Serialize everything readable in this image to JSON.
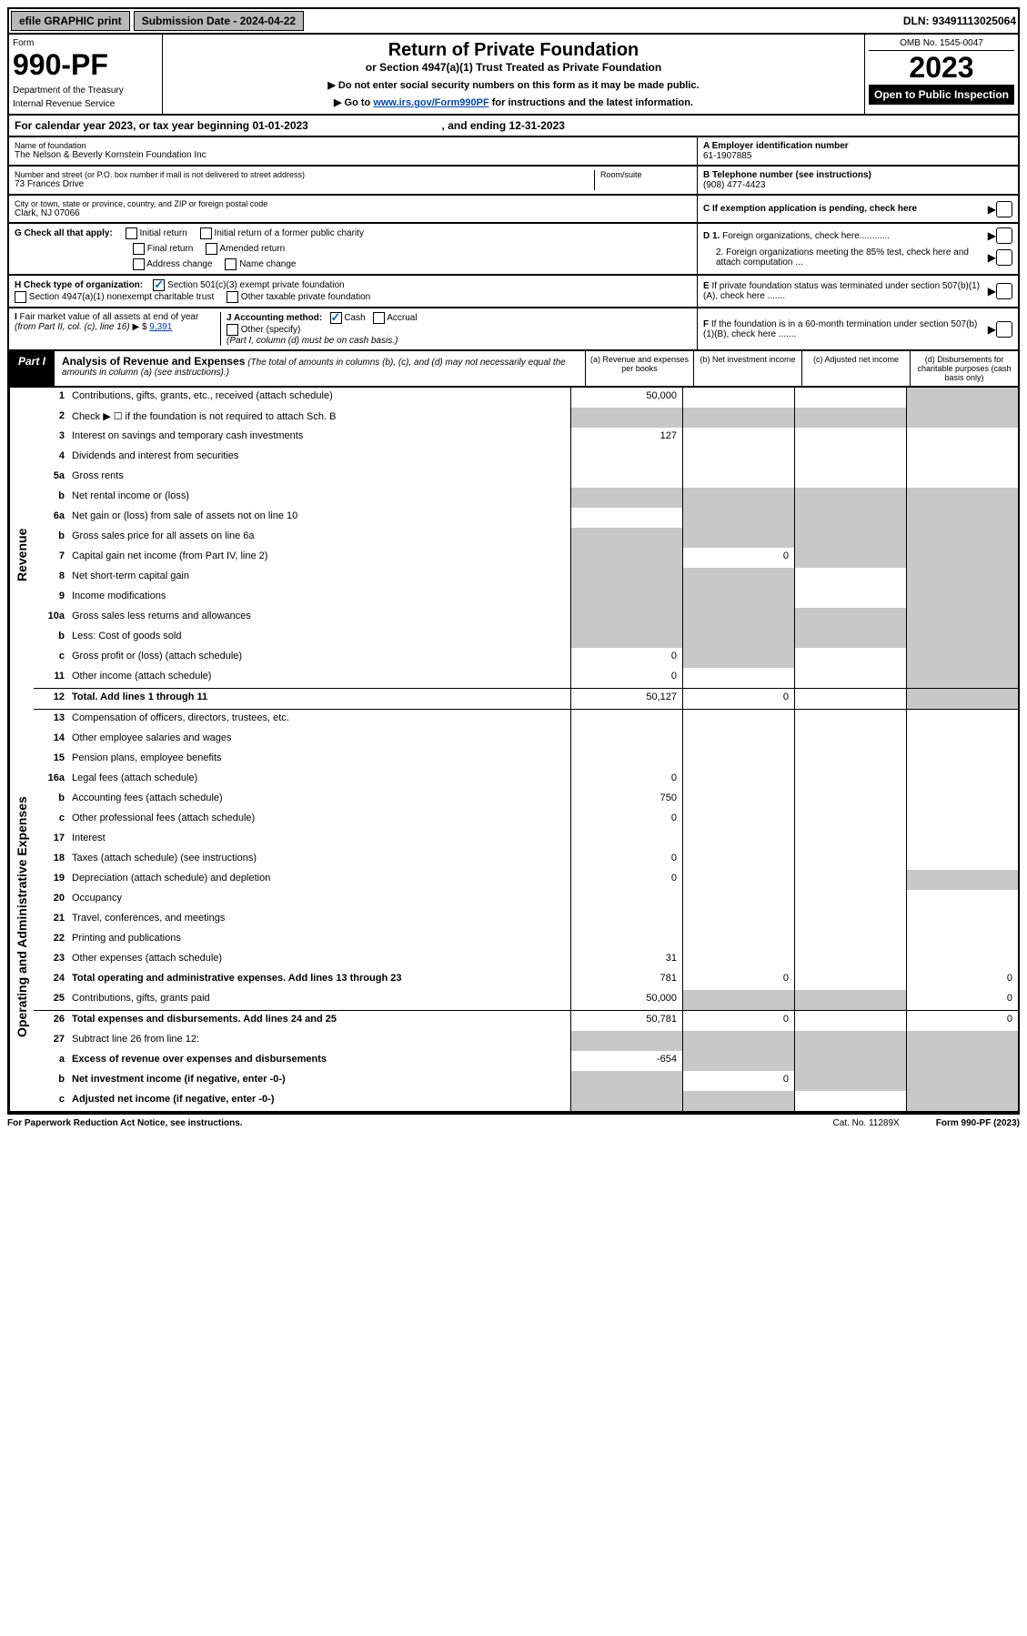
{
  "topbar": {
    "efile": "efile GRAPHIC print",
    "subdate_label": "Submission Date - ",
    "subdate": "2024-04-22",
    "dln_label": "DLN: ",
    "dln": "93491113025064"
  },
  "header": {
    "form_label": "Form",
    "form_num": "990-PF",
    "dept1": "Department of the Treasury",
    "dept2": "Internal Revenue Service",
    "title": "Return of Private Foundation",
    "subtitle": "or Section 4947(a)(1) Trust Treated as Private Foundation",
    "instr1": "▶ Do not enter social security numbers on this form as it may be made public.",
    "instr2_a": "▶ Go to ",
    "instr2_link": "www.irs.gov/Form990PF",
    "instr2_b": " for instructions and the latest information.",
    "omb": "OMB No. 1545-0047",
    "year": "2023",
    "open": "Open to Public Inspection"
  },
  "calyear": {
    "text_a": "For calendar year 2023, or tax year beginning ",
    "begin": "01-01-2023",
    "text_b": " , and ending ",
    "end": "12-31-2023"
  },
  "name": {
    "label": "Name of foundation",
    "value": "The Nelson & Beverly Kornstein Foundation Inc",
    "a_label": "A Employer identification number",
    "ein": "61-1907885"
  },
  "address": {
    "street_label": "Number and street (or P.O. box number if mail is not delivered to street address)",
    "street": "73 Frances Drive",
    "room_label": "Room/suite",
    "b_label": "B Telephone number (see instructions)",
    "phone": "(908) 477-4423",
    "city_label": "City or town, state or province, country, and ZIP or foreign postal code",
    "city": "Clark, NJ 07066",
    "c_label": "C If exemption application is pending, check here"
  },
  "checks": {
    "g_label": "G Check all that apply:",
    "g1": "Initial return",
    "g2": "Initial return of a former public charity",
    "g3": "Final return",
    "g4": "Amended return",
    "g5": "Address change",
    "g6": "Name change",
    "d1": "D 1. Foreign organizations, check here............",
    "d2": "2. Foreign organizations meeting the 85% test, check here and attach computation ...",
    "h_label": "H Check type of organization:",
    "h1": "Section 501(c)(3) exempt private foundation",
    "h2": "Section 4947(a)(1) nonexempt charitable trust",
    "h3": "Other taxable private foundation",
    "e_label": "E If private foundation status was terminated under section 507(b)(1)(A), check here .......",
    "i_label": "I Fair market value of all assets at end of year (from Part II, col. (c), line 16) ▶ $ ",
    "i_val": "9,391",
    "j_label": "J Accounting method:",
    "j1": "Cash",
    "j2": "Accrual",
    "j3": "Other (specify)",
    "j_note": "(Part I, column (d) must be on cash basis.)",
    "f_label": "F If the foundation is in a 60-month termination under section 507(b)(1)(B), check here ......."
  },
  "part1": {
    "label": "Part I",
    "title": "Analysis of Revenue and Expenses",
    "note": "(The total of amounts in columns (b), (c), and (d) may not necessarily equal the amounts in column (a) (see instructions).)",
    "col_a": "(a) Revenue and expenses per books",
    "col_b": "(b) Net investment income",
    "col_c": "(c) Adjusted net income",
    "col_d": "(d) Disbursements for charitable purposes (cash basis only)"
  },
  "side": {
    "revenue": "Revenue",
    "expenses": "Operating and Administrative Expenses"
  },
  "rows": [
    {
      "n": "1",
      "d": "Contributions, gifts, grants, etc., received (attach schedule)",
      "a": "50,000",
      "greyD": true
    },
    {
      "n": "2",
      "d": "Check ▶ ☐ if the foundation is not required to attach Sch. B",
      "allgrey": true
    },
    {
      "n": "3",
      "d": "Interest on savings and temporary cash investments",
      "a": "127"
    },
    {
      "n": "4",
      "d": "Dividends and interest from securities"
    },
    {
      "n": "5a",
      "d": "Gross rents"
    },
    {
      "n": "b",
      "d": "Net rental income or (loss)",
      "allgrey": true
    },
    {
      "n": "6a",
      "d": "Net gain or (loss) from sale of assets not on line 10",
      "greyBCD": true
    },
    {
      "n": "b",
      "d": "Gross sales price for all assets on line 6a",
      "allgrey": true
    },
    {
      "n": "7",
      "d": "Capital gain net income (from Part IV, line 2)",
      "greyA": true,
      "b": "0",
      "greyCD": true
    },
    {
      "n": "8",
      "d": "Net short-term capital gain",
      "greyAB": true,
      "greyD": true
    },
    {
      "n": "9",
      "d": "Income modifications",
      "greyAB": true,
      "greyD": true
    },
    {
      "n": "10a",
      "d": "Gross sales less returns and allowances",
      "allgrey": true
    },
    {
      "n": "b",
      "d": "Less: Cost of goods sold",
      "allgrey": true
    },
    {
      "n": "c",
      "d": "Gross profit or (loss) (attach schedule)",
      "a": "0",
      "greyB": true,
      "greyD": true
    },
    {
      "n": "11",
      "d": "Other income (attach schedule)",
      "a": "0",
      "greyD": true
    },
    {
      "n": "12",
      "d": "Total. Add lines 1 through 11",
      "bold": true,
      "a": "50,127",
      "b": "0",
      "greyD": true,
      "divider": true
    }
  ],
  "exprows": [
    {
      "n": "13",
      "d": "Compensation of officers, directors, trustees, etc."
    },
    {
      "n": "14",
      "d": "Other employee salaries and wages"
    },
    {
      "n": "15",
      "d": "Pension plans, employee benefits"
    },
    {
      "n": "16a",
      "d": "Legal fees (attach schedule)",
      "a": "0"
    },
    {
      "n": "b",
      "d": "Accounting fees (attach schedule)",
      "a": "750"
    },
    {
      "n": "c",
      "d": "Other professional fees (attach schedule)",
      "a": "0"
    },
    {
      "n": "17",
      "d": "Interest"
    },
    {
      "n": "18",
      "d": "Taxes (attach schedule) (see instructions)",
      "a": "0"
    },
    {
      "n": "19",
      "d": "Depreciation (attach schedule) and depletion",
      "a": "0",
      "greyD": true
    },
    {
      "n": "20",
      "d": "Occupancy"
    },
    {
      "n": "21",
      "d": "Travel, conferences, and meetings"
    },
    {
      "n": "22",
      "d": "Printing and publications"
    },
    {
      "n": "23",
      "d": "Other expenses (attach schedule)",
      "a": "31"
    },
    {
      "n": "24",
      "d": "Total operating and administrative expenses. Add lines 13 through 23",
      "bold": true,
      "a": "781",
      "b": "0",
      "dv": "0"
    },
    {
      "n": "25",
      "d": "Contributions, gifts, grants paid",
      "a": "50,000",
      "greyBC": true,
      "dv": "0"
    },
    {
      "n": "26",
      "d": "Total expenses and disbursements. Add lines 24 and 25",
      "bold": true,
      "a": "50,781",
      "b": "0",
      "dv": "0",
      "divider": true
    }
  ],
  "endrows": [
    {
      "n": "27",
      "d": "Subtract line 26 from line 12:",
      "allgrey": true
    },
    {
      "n": "a",
      "d": "Excess of revenue over expenses and disbursements",
      "bold": true,
      "a": "-654",
      "greyBCD": true
    },
    {
      "n": "b",
      "d": "Net investment income (if negative, enter -0-)",
      "bold": true,
      "greyA": true,
      "b": "0",
      "greyCD": true
    },
    {
      "n": "c",
      "d": "Adjusted net income (if negative, enter -0-)",
      "bold": true,
      "greyAB": true,
      "greyD": true
    }
  ],
  "footer": {
    "pra": "For Paperwork Reduction Act Notice, see instructions.",
    "cat": "Cat. No. 11289X",
    "form": "Form 990-PF (2023)"
  }
}
